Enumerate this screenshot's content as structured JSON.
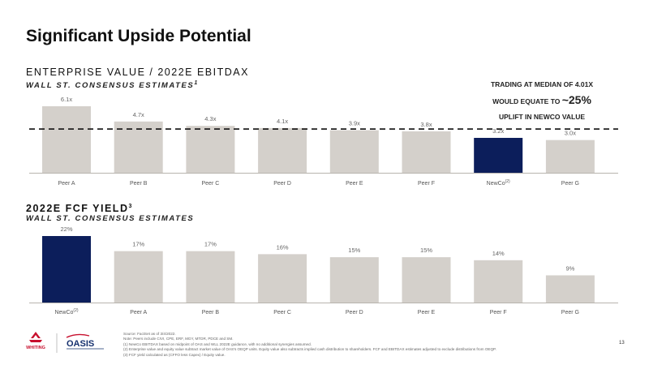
{
  "title": "Significant Upside Potential",
  "chart1": {
    "title": "ENTERPRISE VALUE / 2022E EBITDAX",
    "subtitle": "WALL ST. CONSENSUS ESTIMATES",
    "subtitle_sup": "1"
  },
  "chart2": {
    "title": "2022E FCF YIELD",
    "title_sup": "3",
    "subtitle": "WALL ST. CONSENSUS ESTIMATES"
  },
  "callout": {
    "line1": "TRADING AT MEDIAN OF 4.01X",
    "line2_pre": "WOULD EQUATE TO ",
    "line2_big": "~25%",
    "line3": "UPLIFT IN NEWCO VALUE"
  },
  "chart_data": [
    {
      "type": "bar",
      "title": "ENTERPRISE VALUE / 2022E EBITDAX",
      "categories": [
        "Peer A",
        "Peer B",
        "Peer C",
        "Peer D",
        "Peer E",
        "Peer F",
        "NewCo",
        "Peer G"
      ],
      "category_superscripts": [
        "",
        "",
        "",
        "",
        "",
        "",
        "(2)",
        ""
      ],
      "values": [
        6.1,
        4.7,
        4.3,
        4.1,
        3.9,
        3.8,
        3.2,
        3.0
      ],
      "labels": [
        "6.1x",
        "4.7x",
        "4.3x",
        "4.1x",
        "3.9x",
        "3.8x",
        "3.2x",
        "3.0x"
      ],
      "highlight": [
        "NewCo"
      ],
      "reference_line": 4.01,
      "ylim": [
        0,
        6.1
      ],
      "grid": false
    },
    {
      "type": "bar",
      "title": "2022E FCF YIELD",
      "categories": [
        "NewCo",
        "Peer A",
        "Peer B",
        "Peer C",
        "Peer D",
        "Peer E",
        "Peer F",
        "Peer G"
      ],
      "category_superscripts": [
        "(2)",
        "",
        "",
        "",
        "",
        "",
        "",
        ""
      ],
      "values": [
        22,
        17,
        17,
        16,
        15,
        15,
        14,
        9
      ],
      "labels": [
        "22%",
        "17%",
        "17%",
        "16%",
        "15%",
        "15%",
        "14%",
        "9%"
      ],
      "highlight": [
        "NewCo"
      ],
      "ylim": [
        0,
        22
      ],
      "grid": false
    }
  ],
  "colors": {
    "bar": "#d4d0cb",
    "highlight": "#0c1e5b",
    "baseline": "#b8b4ae",
    "reference_line": "#111111",
    "logo_red": "#c8102e",
    "logo_navy": "#15306e"
  },
  "logos": {
    "whiting": "WHITING",
    "oasis": "OASIS"
  },
  "footnotes": [
    "Source: FactSet as of 3/4/2022.",
    "Note: Peers include CIVI, CPE, ERF, MGY, MTDR, PDCE and SM.",
    "(1)    NewCo EBITDAX based on midpoint of OAS and WLL 2022E guidance, with no additional synergies assumed.",
    "(2)    Enterprise value and equity value subtract market value of OAS's OEQP units. Equity value also subtracts implied cash distribution to shareholders. FCF and EBITDAX estimates adjusted to exclude distributions from OEQP.",
    "(3)    FCF yield calculated as (CFFO less Capex) / Equity value."
  ],
  "page_number": "13"
}
